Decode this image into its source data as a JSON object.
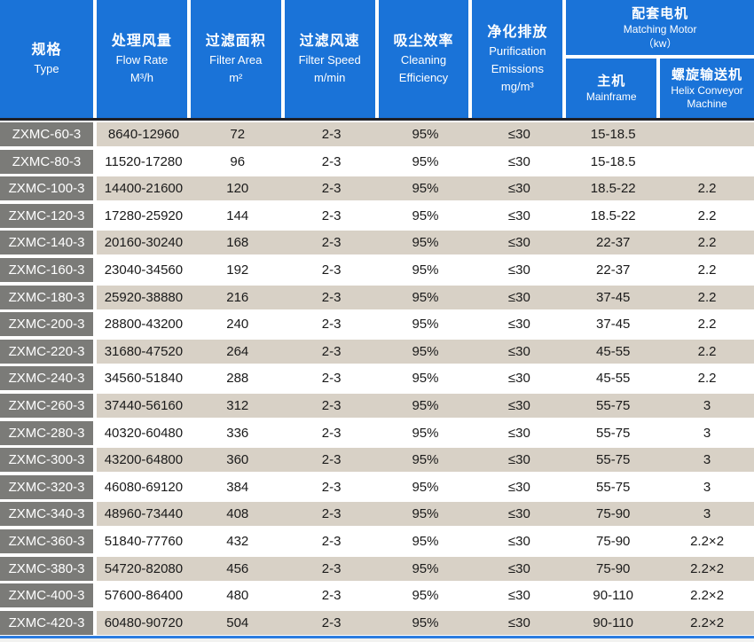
{
  "colors": {
    "header_blue": "#1a73d8",
    "type_gray": "#7b7b78",
    "row_beige": "#d8d1c6",
    "row_white": "#ffffff",
    "divider_dark": "#1e2028",
    "bottom_line_blue": "#2b7ce0",
    "header_text": "#ffffff",
    "body_text": "#1a1a1a"
  },
  "header": {
    "type": {
      "zh": "规格",
      "en": "Type"
    },
    "flow_rate": {
      "zh": "处理风量",
      "en": "Flow Rate",
      "unit": "M³/h"
    },
    "filter_area": {
      "zh": "过滤面积",
      "en": "Filter Area",
      "unit": "m²"
    },
    "filter_speed": {
      "zh": "过滤风速",
      "en": "Filter Speed",
      "unit": "m/min"
    },
    "cleaning": {
      "zh": "吸尘效率",
      "en1": "Cleaning",
      "en2": "Efficiency"
    },
    "purification": {
      "zh": "净化排放",
      "en1": "Purification",
      "en2": "Emissions",
      "unit": "mg/m³"
    },
    "motor": {
      "zh": "配套电机",
      "en": "Matching Motor",
      "unit": "（kw）",
      "mainframe": {
        "zh": "主机",
        "en": "Mainframe"
      },
      "helix": {
        "zh": "螺旋输送机",
        "en1": "Helix Conveyor",
        "en2": "Machine"
      }
    }
  },
  "rows": [
    {
      "type": "ZXMC-60-3",
      "values": [
        "8640-12960",
        "72",
        "2-3",
        "95%",
        "≤30",
        "15-18.5",
        ""
      ]
    },
    {
      "type": "ZXMC-80-3",
      "values": [
        "11520-17280",
        "96",
        "2-3",
        "95%",
        "≤30",
        "15-18.5",
        ""
      ]
    },
    {
      "type": "ZXMC-100-3",
      "values": [
        "14400-21600",
        "120",
        "2-3",
        "95%",
        "≤30",
        "18.5-22",
        "2.2"
      ]
    },
    {
      "type": "ZXMC-120-3",
      "values": [
        "17280-25920",
        "144",
        "2-3",
        "95%",
        "≤30",
        "18.5-22",
        "2.2"
      ]
    },
    {
      "type": "ZXMC-140-3",
      "values": [
        "20160-30240",
        "168",
        "2-3",
        "95%",
        "≤30",
        "22-37",
        "2.2"
      ]
    },
    {
      "type": "ZXMC-160-3",
      "values": [
        "23040-34560",
        "192",
        "2-3",
        "95%",
        "≤30",
        "22-37",
        "2.2"
      ]
    },
    {
      "type": "ZXMC-180-3",
      "values": [
        "25920-38880",
        "216",
        "2-3",
        "95%",
        "≤30",
        "37-45",
        "2.2"
      ]
    },
    {
      "type": "ZXMC-200-3",
      "values": [
        "28800-43200",
        "240",
        "2-3",
        "95%",
        "≤30",
        "37-45",
        "2.2"
      ]
    },
    {
      "type": "ZXMC-220-3",
      "values": [
        "31680-47520",
        "264",
        "2-3",
        "95%",
        "≤30",
        "45-55",
        "2.2"
      ]
    },
    {
      "type": "ZXMC-240-3",
      "values": [
        "34560-51840",
        "288",
        "2-3",
        "95%",
        "≤30",
        "45-55",
        "2.2"
      ]
    },
    {
      "type": "ZXMC-260-3",
      "values": [
        "37440-56160",
        "312",
        "2-3",
        "95%",
        "≤30",
        "55-75",
        "3"
      ]
    },
    {
      "type": "ZXMC-280-3",
      "values": [
        "40320-60480",
        "336",
        "2-3",
        "95%",
        "≤30",
        "55-75",
        "3"
      ]
    },
    {
      "type": "ZXMC-300-3",
      "values": [
        "43200-64800",
        "360",
        "2-3",
        "95%",
        "≤30",
        "55-75",
        "3"
      ]
    },
    {
      "type": "ZXMC-320-3",
      "values": [
        "46080-69120",
        "384",
        "2-3",
        "95%",
        "≤30",
        "55-75",
        "3"
      ]
    },
    {
      "type": "ZXMC-340-3",
      "values": [
        "48960-73440",
        "408",
        "2-3",
        "95%",
        "≤30",
        "75-90",
        "3"
      ]
    },
    {
      "type": "ZXMC-360-3",
      "values": [
        "51840-77760",
        "432",
        "2-3",
        "95%",
        "≤30",
        "75-90",
        "2.2×2"
      ]
    },
    {
      "type": "ZXMC-380-3",
      "values": [
        "54720-82080",
        "456",
        "2-3",
        "95%",
        "≤30",
        "75-90",
        "2.2×2"
      ]
    },
    {
      "type": "ZXMC-400-3",
      "values": [
        "57600-86400",
        "480",
        "2-3",
        "95%",
        "≤30",
        "90-110",
        "2.2×2"
      ]
    },
    {
      "type": "ZXMC-420-3",
      "values": [
        "60480-90720",
        "504",
        "2-3",
        "95%",
        "≤30",
        "90-110",
        "2.2×2"
      ]
    }
  ]
}
